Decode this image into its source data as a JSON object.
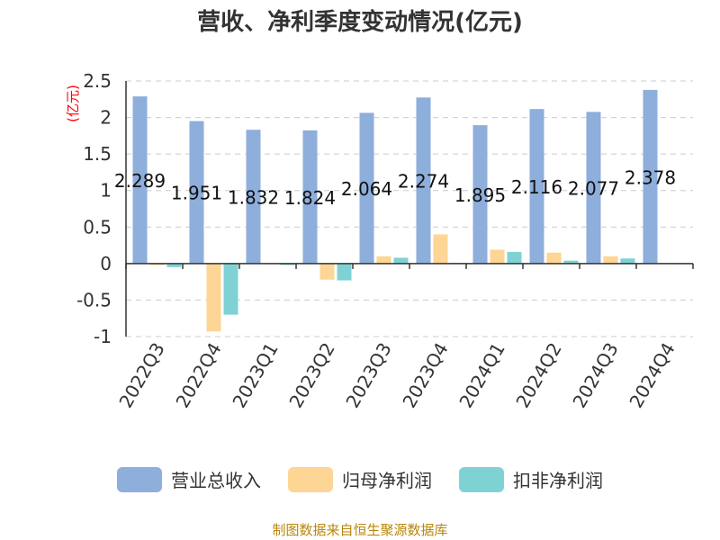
{
  "chart_data": {
    "type": "bar",
    "title": "营收、净利季度变动情况(亿元)",
    "ylabel": "(亿元)",
    "xlabel": "",
    "categories": [
      "2022Q3",
      "2022Q4",
      "2023Q1",
      "2023Q2",
      "2023Q3",
      "2023Q4",
      "2024Q1",
      "2024Q2",
      "2024Q3",
      "2024Q4"
    ],
    "series": [
      {
        "name": "营业总收入",
        "color": "#8eaedb",
        "values": [
          2.289,
          1.951,
          1.832,
          1.824,
          2.064,
          2.274,
          1.895,
          2.116,
          2.077,
          2.378
        ],
        "data_labels": [
          "2.289",
          "1.951",
          "1.832",
          "1.824",
          "2.064",
          "2.274",
          "1.895",
          "2.116",
          "2.077",
          "2.378"
        ]
      },
      {
        "name": "归母净利润",
        "color": "#fdd595",
        "values": [
          -0.02,
          -0.93,
          -0.01,
          -0.22,
          0.1,
          0.4,
          0.19,
          0.15,
          0.1,
          0.01
        ]
      },
      {
        "name": "扣非净利润",
        "color": "#7fd2d4",
        "values": [
          -0.05,
          -0.7,
          -0.02,
          -0.23,
          0.08,
          0.01,
          0.16,
          0.04,
          0.07,
          -0.01
        ]
      }
    ],
    "ylim": [
      -1,
      2.5
    ],
    "yticks": [
      "2.5",
      "2",
      "1.5",
      "1",
      "0.5",
      "0",
      "-0.5",
      "-1"
    ],
    "ytick_values": [
      2.5,
      2,
      1.5,
      1,
      0.5,
      0,
      -0.5,
      -1
    ],
    "grid": true,
    "legend_position": "bottom"
  },
  "source": "制图数据来自恒生聚源数据库"
}
